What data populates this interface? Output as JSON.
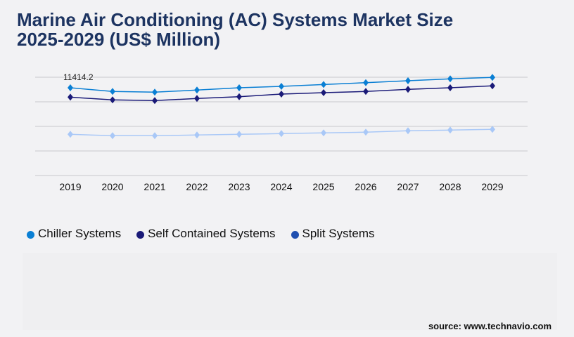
{
  "title_line1": "Marine Air Conditioning (AC) Systems Market Size",
  "title_line2": "2025-2029 (US$ Million)",
  "source": "source: www.technavio.com",
  "chart_data": {
    "type": "line",
    "title": "Marine Air Conditioning (AC) Systems Market Size 2025-2029 (US$ Million)",
    "xlabel": "",
    "ylabel": "",
    "categories": [
      "2019",
      "2020",
      "2021",
      "2022",
      "2023",
      "2024",
      "2025",
      "2026",
      "2027",
      "2028",
      "2029"
    ],
    "ylim": [
      0,
      12784
    ],
    "grid": true,
    "legend_position": "bottom-left",
    "annotations": [
      {
        "series": "Chiller Systems",
        "category": "2019",
        "text": "11414.2"
      }
    ],
    "series": [
      {
        "name": "Chiller Systems",
        "color": "#0a7fd4",
        "legend_color": "#0a7fd4",
        "values": [
          11414.2,
          10930,
          10838,
          11112,
          11414,
          11597,
          11841,
          12080,
          12327,
          12574,
          12757
        ]
      },
      {
        "name": "Self Contained Systems",
        "color": "#1a1a78",
        "legend_color": "#1a1a78",
        "values": [
          10196,
          9834,
          9743,
          10017,
          10254,
          10592,
          10775,
          10930,
          11204,
          11414,
          11661
        ]
      },
      {
        "name": "Split Systems",
        "color": "#a9c8f7",
        "legend_color": "#1f4fb0",
        "values": [
          5360,
          5177,
          5177,
          5269,
          5360,
          5451,
          5543,
          5634,
          5817,
          5908,
          6000
        ]
      }
    ]
  }
}
